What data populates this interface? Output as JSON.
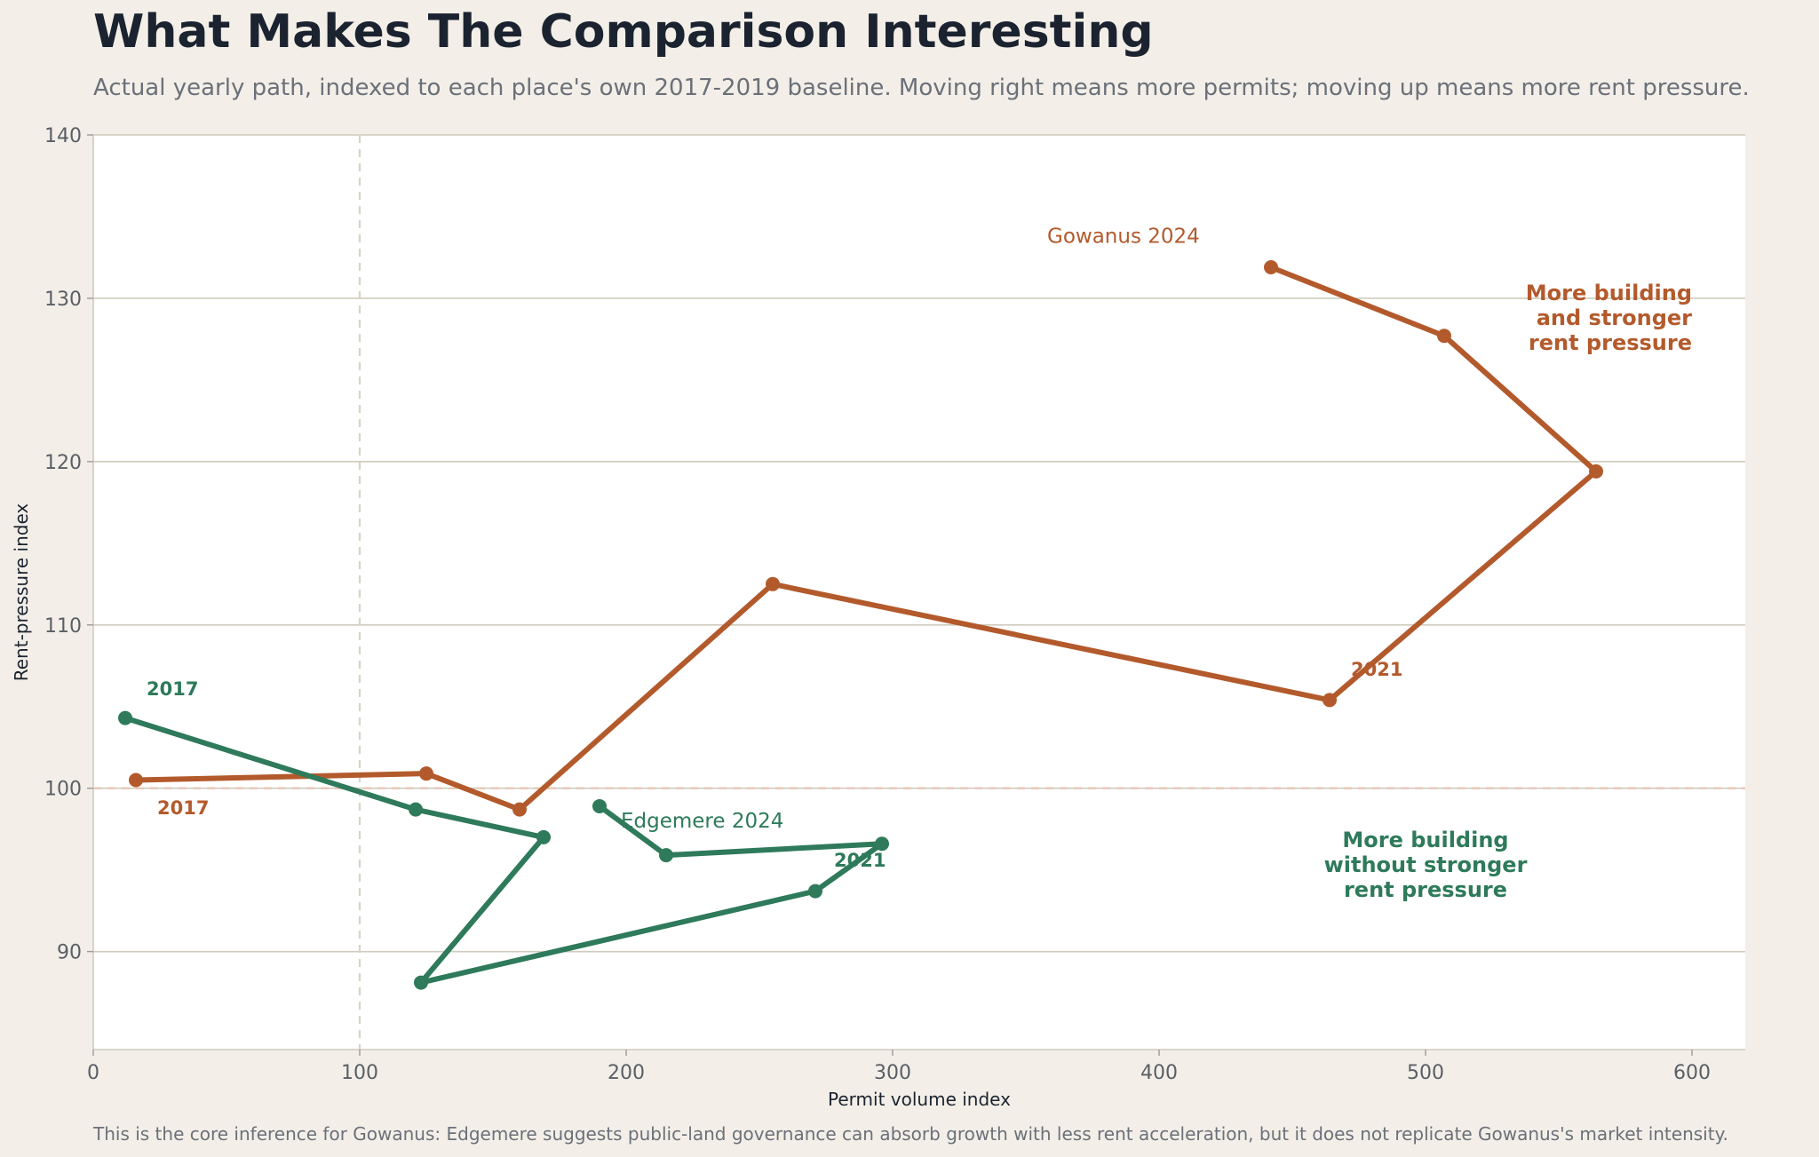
{
  "title": "What Makes The Comparison Interesting",
  "subtitle": "Actual yearly path, indexed to each place's own 2017-2019 baseline. Moving right means more permits; moving up means more rent pressure.",
  "footnote": "This is the core inference for Gowanus: Edgemere suggests public-land governance can absorb growth with less rent acceleration, but it does not replicate Gowanus's market intensity.",
  "colors": {
    "background": "#f3efe8",
    "plot_background": "#ffffff",
    "gowanus": "#b35a2c",
    "edgemere": "#2e7a5a",
    "grid": "#cfcbbd",
    "baseline_x": "#d8d4c4",
    "baseline_y": "#e8c4b2",
    "text_dark": "#1b2330",
    "text_muted": "#6b7079"
  },
  "chart_data": {
    "type": "line",
    "xlabel": "Permit volume index",
    "ylabel": "Rent-pressure index",
    "xlim": [
      0,
      620
    ],
    "ylim": [
      84,
      140
    ],
    "x_ticks": [
      0,
      100,
      200,
      300,
      400,
      500,
      600
    ],
    "y_ticks": [
      90,
      100,
      110,
      120,
      130,
      140
    ],
    "grid": "horizontal",
    "reference_lines": {
      "x": 100,
      "y": 100
    },
    "series": [
      {
        "name": "Gowanus",
        "color": "#b35a2c",
        "points": [
          {
            "x": 16,
            "y": 100.5
          },
          {
            "x": 125,
            "y": 100.9
          },
          {
            "x": 160,
            "y": 98.7
          },
          {
            "x": 255,
            "y": 112.5
          },
          {
            "x": 464,
            "y": 105.4
          },
          {
            "x": 564,
            "y": 119.4
          },
          {
            "x": 507,
            "y": 127.7
          },
          {
            "x": 442,
            "y": 131.9
          }
        ]
      },
      {
        "name": "Edgemere",
        "color": "#2e7a5a",
        "points": [
          {
            "x": 12,
            "y": 104.3
          },
          {
            "x": 121,
            "y": 98.7
          },
          {
            "x": 169,
            "y": 97.0
          },
          {
            "x": 123,
            "y": 88.1
          },
          {
            "x": 271,
            "y": 93.7
          },
          {
            "x": 296,
            "y": 96.6
          },
          {
            "x": 215,
            "y": 95.9
          },
          {
            "x": 190,
            "y": 98.9
          }
        ]
      }
    ],
    "point_labels": [
      {
        "text": "2017",
        "x": 20,
        "y": 105.7,
        "series": "Edgemere",
        "bold": true
      },
      {
        "text": "2017",
        "x": 24,
        "y": 98.4,
        "series": "Gowanus",
        "bold": true
      },
      {
        "text": "2021",
        "x": 472,
        "y": 106.9,
        "series": "Gowanus",
        "bold": true
      },
      {
        "text": "2021",
        "x": 278,
        "y": 95.2,
        "series": "Edgemere",
        "bold": true
      },
      {
        "text": "Gowanus 2024",
        "x": 358,
        "y": 133.4,
        "series": "Gowanus",
        "bold": false
      },
      {
        "text": "Edgemere 2024",
        "x": 198,
        "y": 97.6,
        "series": "Edgemere",
        "bold": false
      }
    ],
    "annotations": [
      {
        "lines": [
          "More building",
          "and stronger",
          "rent pressure"
        ],
        "x": 600,
        "y": 129.9,
        "align": "right",
        "series": "Gowanus"
      },
      {
        "lines": [
          "More building",
          "without stronger",
          "rent pressure"
        ],
        "x": 500,
        "y": 96.4,
        "align": "center",
        "series": "Edgemere"
      }
    ]
  }
}
